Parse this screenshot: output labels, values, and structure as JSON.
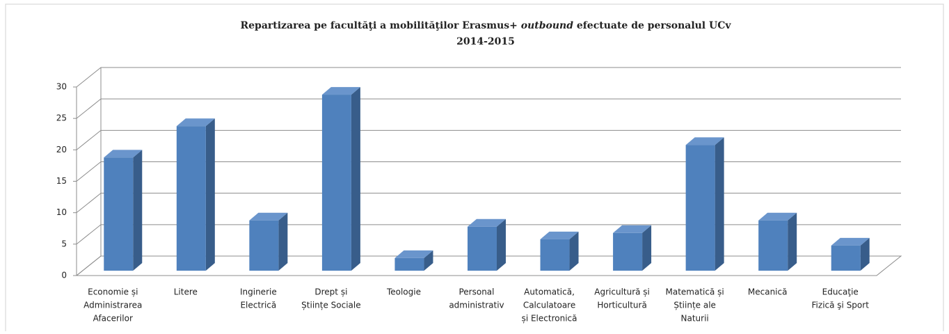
{
  "chart_data": {
    "type": "bar3d",
    "title_parts": [
      "Repartizarea pe facultăţi a mobilităţilor  Erasmus+ ",
      "outbound",
      " efectuate de personalul UCv"
    ],
    "subtitle": "2014-2015",
    "categories": [
      [
        "Economie și",
        "Administrarea",
        "Afacerilor"
      ],
      [
        "Litere"
      ],
      [
        "Inginerie",
        "Electrică"
      ],
      [
        "Drept și",
        "Științe Sociale"
      ],
      [
        "Teologie"
      ],
      [
        "Personal",
        "administrativ"
      ],
      [
        "Automatică,",
        "Calculatoare",
        "și Electronică"
      ],
      [
        "Agricultură și",
        "Horticultură"
      ],
      [
        "Matematică și",
        "Științe ale",
        "Naturii"
      ],
      [
        "Mecanică"
      ],
      [
        "Educaţie",
        "Fizică şi Sport"
      ]
    ],
    "values": [
      18,
      23,
      8,
      28,
      2,
      7,
      5,
      6,
      20,
      8,
      4
    ],
    "color": "#4f81bd",
    "ylim": [
      0,
      30
    ],
    "yticks": [
      0,
      5,
      10,
      15,
      20,
      25,
      30
    ],
    "grid": true
  }
}
